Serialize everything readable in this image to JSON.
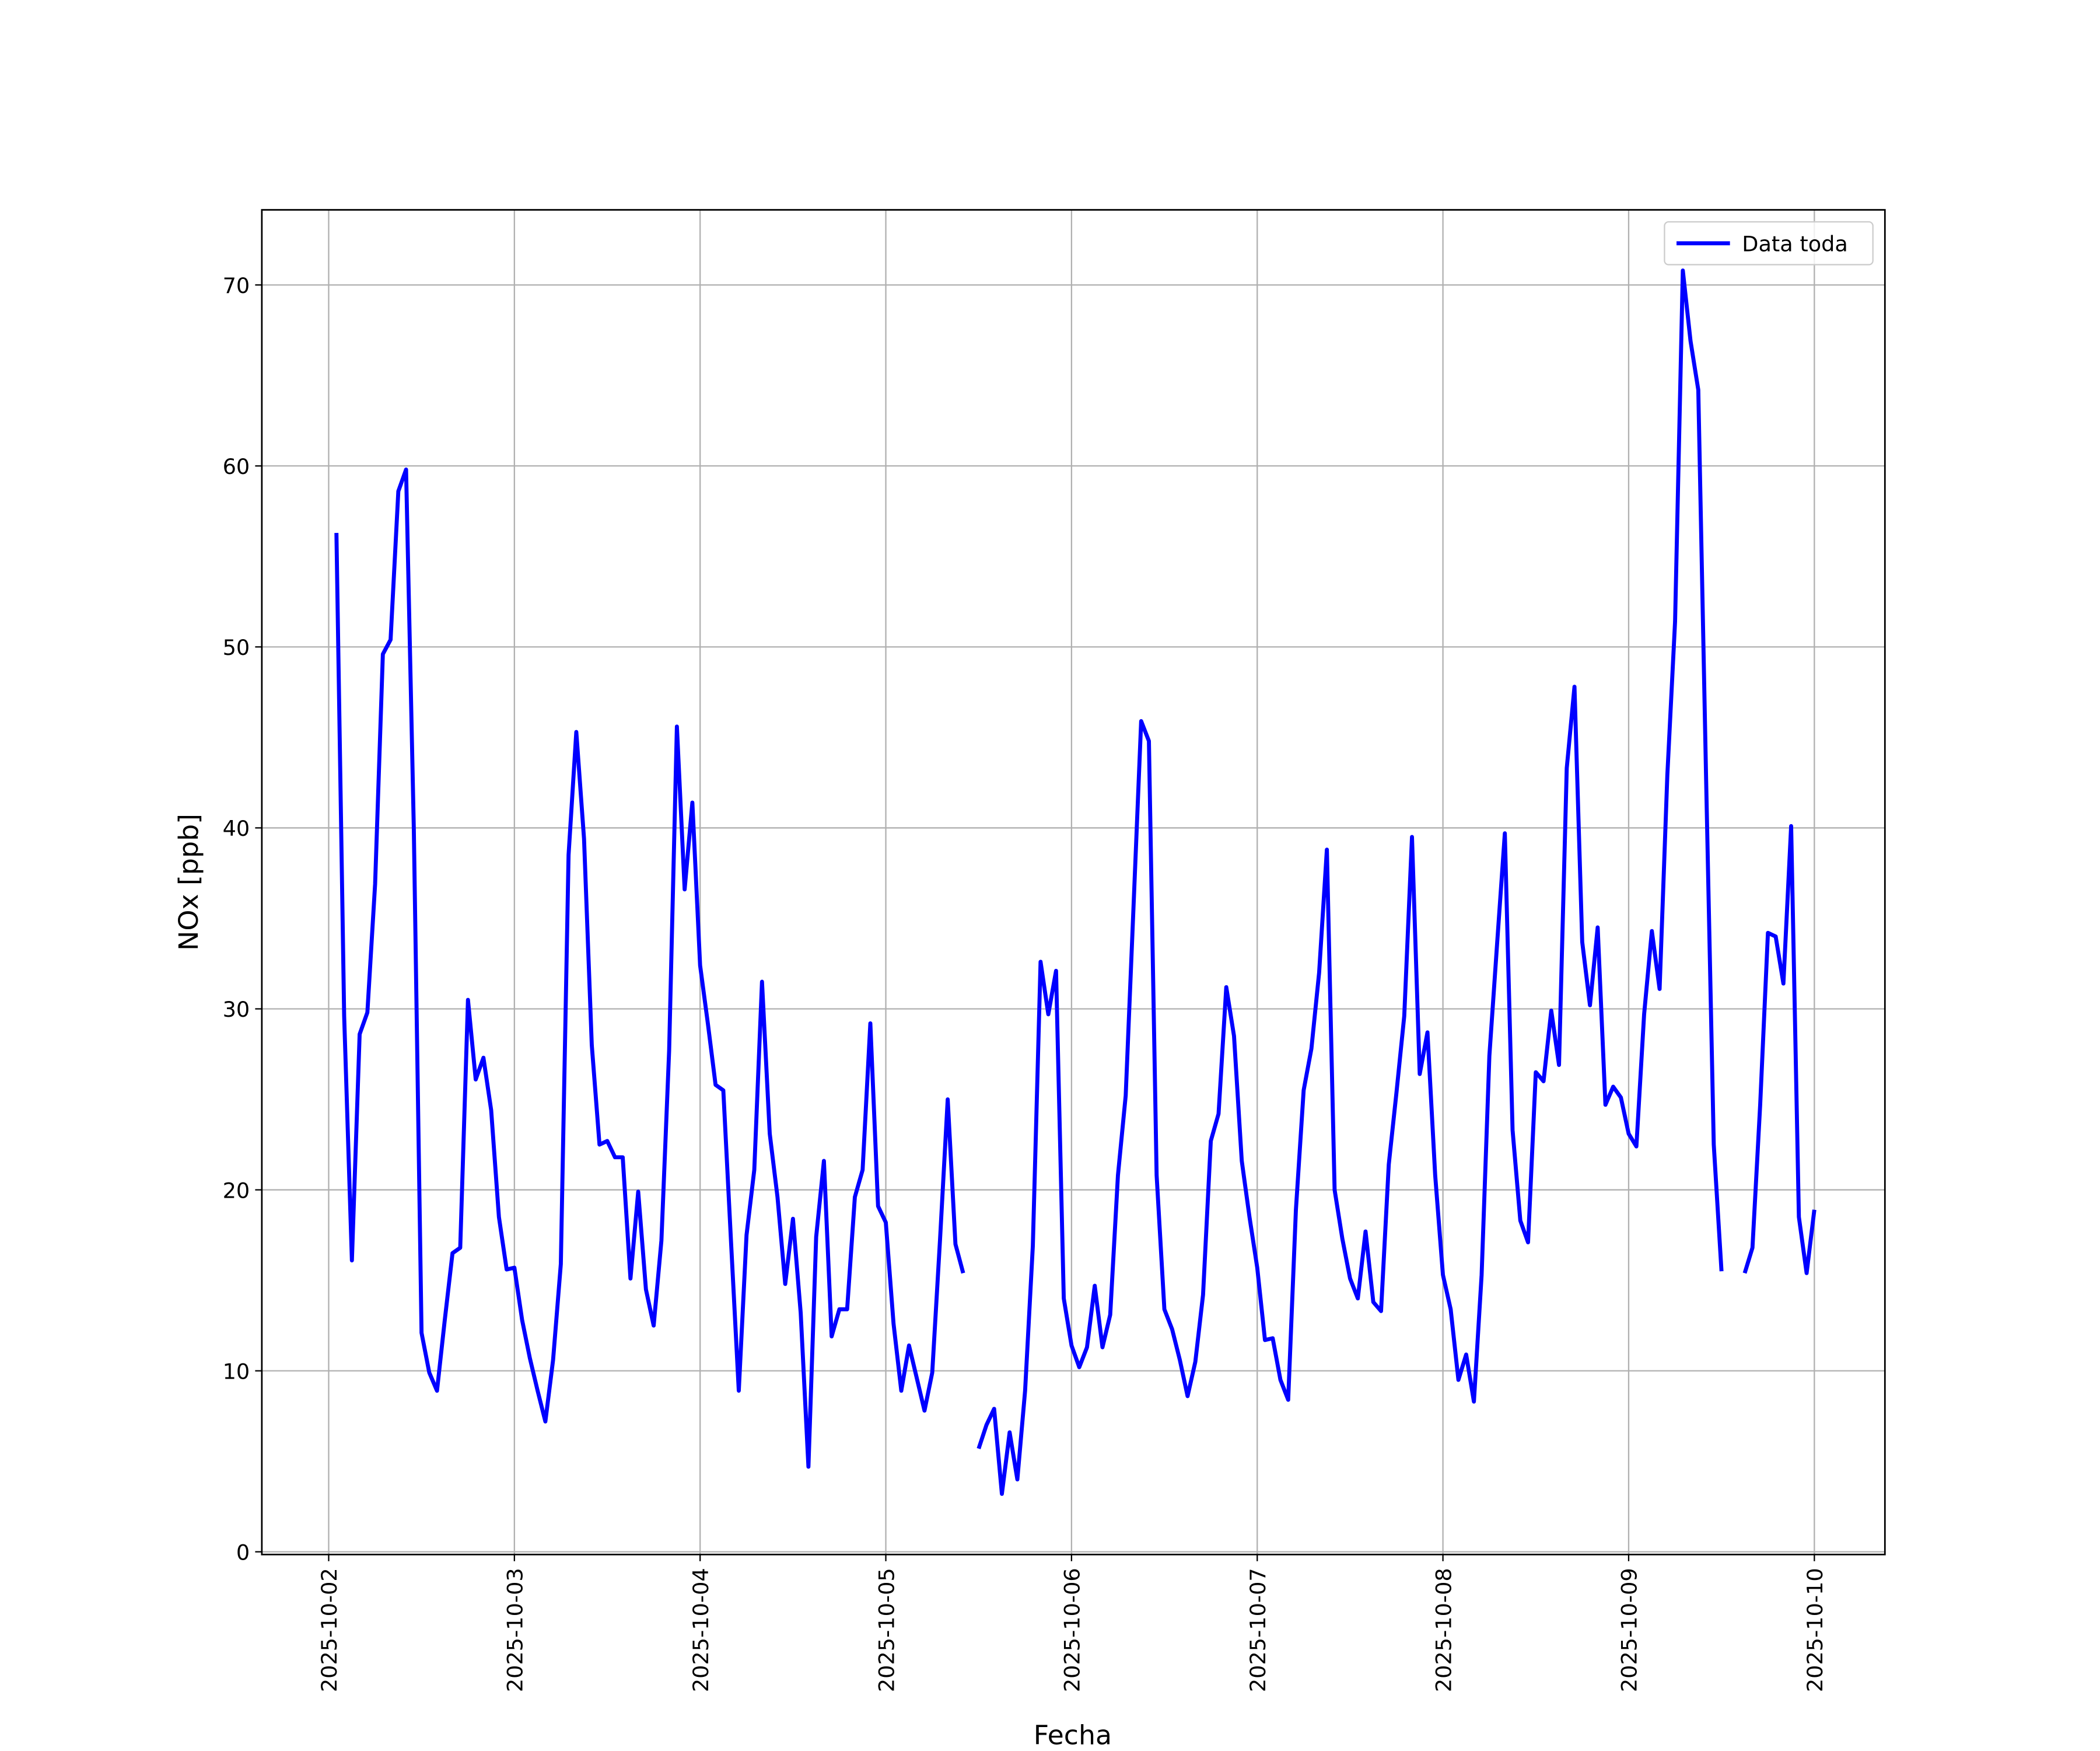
{
  "chart_data": {
    "type": "line",
    "xlabel": "Fecha",
    "ylabel": "NOx [ppb]",
    "x": [
      0.0417,
      0.0833,
      0.125,
      0.1667,
      0.2083,
      0.25,
      0.2917,
      0.3333,
      0.375,
      0.4167,
      0.4583,
      0.5,
      0.5417,
      0.5833,
      0.625,
      0.6667,
      0.7083,
      0.75,
      0.7917,
      0.8333,
      0.875,
      0.9167,
      0.9583,
      1,
      1.0417,
      1.0833,
      1.125,
      1.1667,
      1.2083,
      1.25,
      1.2917,
      1.3333,
      1.375,
      1.4167,
      1.4583,
      1.5,
      1.5417,
      1.5833,
      1.625,
      1.6667,
      1.7083,
      1.75,
      1.7917,
      1.8333,
      1.875,
      1.9167,
      1.9583,
      2,
      2.0417,
      2.0833,
      2.125,
      2.1667,
      2.2083,
      2.25,
      2.2917,
      2.3333,
      2.375,
      2.4167,
      2.4583,
      2.5,
      2.5417,
      2.5833,
      2.625,
      2.6667,
      2.7083,
      2.75,
      2.7917,
      2.8333,
      2.875,
      2.9167,
      2.9583,
      3,
      3.0417,
      3.0833,
      3.125,
      3.1667,
      3.2083,
      3.25,
      3.2917,
      3.3333,
      3.375,
      3.4167,
      3.4583,
      3.5,
      3.5417,
      3.5833,
      3.625,
      3.6667,
      3.7083,
      3.75,
      3.7917,
      3.8333,
      3.875,
      3.9167,
      3.9583,
      4,
      4.0417,
      4.0833,
      4.125,
      4.1667,
      4.2083,
      4.25,
      4.2917,
      4.3333,
      4.375,
      4.4167,
      4.4583,
      4.5,
      4.5417,
      4.5833,
      4.625,
      4.6667,
      4.7083,
      4.75,
      4.7917,
      4.8333,
      4.875,
      4.9167,
      4.9583,
      5,
      5.0417,
      5.0833,
      5.125,
      5.1667,
      5.2083,
      5.25,
      5.2917,
      5.3333,
      5.375,
      5.4167,
      5.4583,
      5.5,
      5.5417,
      5.5833,
      5.625,
      5.6667,
      5.7083,
      5.75,
      5.7917,
      5.8333,
      5.875,
      5.9167,
      5.9583,
      6,
      6.0417,
      6.0833,
      6.125,
      6.1667,
      6.2083,
      6.25,
      6.2917,
      6.3333,
      6.375,
      6.4167,
      6.4583,
      6.5,
      6.5417,
      6.5833,
      6.625,
      6.6667,
      6.7083,
      6.75,
      6.7917,
      6.8333,
      6.875,
      6.9167,
      6.9583,
      7,
      7.0417,
      7.0833,
      7.125,
      7.1667,
      7.2083,
      7.25,
      7.2917,
      7.3333,
      7.375,
      7.4167,
      7.4583,
      7.5,
      7.5417,
      7.5833,
      7.625,
      7.6667,
      7.7083,
      7.75,
      7.7917,
      7.8333,
      7.875,
      7.9167,
      7.9583,
      8
    ],
    "series": [
      {
        "name": "Data toda",
        "color": "#0000ff",
        "values": [
          56.3,
          29.6,
          16.1,
          28.6,
          29.8,
          36.9,
          49.6,
          50.4,
          58.6,
          59.8,
          40.0,
          12.1,
          9.9,
          8.9,
          12.8,
          16.5,
          16.8,
          30.5,
          26.1,
          27.3,
          24.4,
          18.5,
          15.6,
          15.7,
          12.8,
          10.7,
          8.9,
          7.2,
          10.6,
          15.9,
          38.5,
          45.3,
          39.4,
          28.0,
          22.5,
          22.7,
          21.8,
          21.8,
          15.1,
          19.9,
          14.5,
          12.5,
          17.2,
          27.7,
          45.6,
          36.6,
          41.4,
          32.4,
          29.2,
          25.8,
          25.5,
          17.1,
          8.9,
          17.5,
          21.1,
          31.5,
          23.1,
          19.6,
          14.8,
          18.4,
          13.2,
          4.7,
          17.4,
          21.6,
          11.9,
          13.4,
          13.4,
          19.6,
          21.1,
          29.2,
          19.1,
          18.2,
          12.6,
          8.9,
          11.4,
          9.6,
          7.8,
          9.9,
          17.2,
          25.0,
          17.0,
          15.4,
          null,
          5.7,
          7.0,
          7.9,
          3.2,
          6.6,
          4.0,
          8.9,
          16.9,
          32.6,
          29.7,
          32.1,
          14.0,
          11.4,
          10.2,
          11.3,
          14.7,
          11.3,
          13.1,
          20.8,
          25.2,
          35.5,
          45.9,
          44.8,
          20.8,
          13.4,
          12.3,
          10.6,
          8.6,
          10.5,
          14.2,
          22.7,
          24.2,
          31.2,
          28.5,
          21.6,
          18.5,
          15.7,
          11.7,
          11.8,
          9.5,
          8.4,
          18.9,
          25.5,
          27.8,
          32.0,
          38.8,
          20.0,
          17.3,
          15.1,
          14.0,
          17.7,
          13.8,
          13.3,
          21.4,
          25.4,
          29.6,
          39.5,
          26.4,
          28.7,
          20.8,
          15.3,
          13.4,
          9.5,
          10.9,
          8.3,
          15.3,
          27.4,
          33.6,
          39.7,
          23.3,
          18.3,
          17.1,
          26.5,
          26.0,
          29.9,
          26.9,
          43.3,
          47.8,
          33.7,
          30.2,
          34.5,
          24.7,
          25.7,
          25.1,
          23.1,
          22.4,
          29.7,
          34.3,
          31.1,
          42.9,
          51.4,
          70.8,
          66.9,
          64.2,
          42.9,
          22.5,
          15.5,
          null,
          null,
          15.4,
          16.8,
          24.7,
          34.2,
          34.0,
          31.4,
          40.1,
          18.5,
          15.4,
          18.9
        ]
      }
    ],
    "xlim": [
      -0.36,
      8.38
    ],
    "xticks": [
      {
        "value": 0,
        "label": "2025-10-02"
      },
      {
        "value": 1,
        "label": "2025-10-03"
      },
      {
        "value": 2,
        "label": "2025-10-04"
      },
      {
        "value": 3,
        "label": "2025-10-05"
      },
      {
        "value": 4,
        "label": "2025-10-06"
      },
      {
        "value": 5,
        "label": "2025-10-07"
      },
      {
        "value": 6,
        "label": "2025-10-08"
      },
      {
        "value": 7,
        "label": "2025-10-09"
      },
      {
        "value": 8,
        "label": "2025-10-10"
      }
    ],
    "ylim": [
      -0.15,
      74.15
    ],
    "yticks": [
      0,
      10,
      20,
      30,
      40,
      50,
      60,
      70
    ],
    "grid": true,
    "legend": "upper right"
  }
}
